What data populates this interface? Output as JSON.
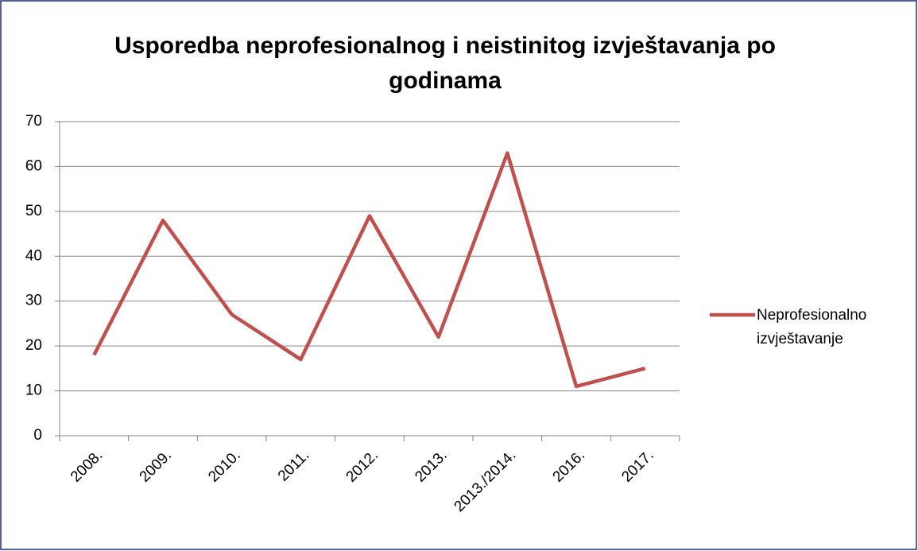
{
  "chart_data": {
    "type": "line",
    "title": "Usporedba neprofesionalnog i neistinitog izvještavanja po godinama",
    "categories": [
      "2008.",
      "2009.",
      "2010.",
      "2011.",
      "2012.",
      "2013.",
      "2013./2014.",
      "2016.",
      "2017."
    ],
    "series": [
      {
        "name": "Neprofesionalno izvještavanje",
        "color": "#c0504d",
        "values": [
          18,
          48,
          27,
          17,
          49,
          22,
          63,
          11,
          15
        ]
      }
    ],
    "ylim": [
      0,
      70
    ],
    "yticks": [
      0,
      10,
      20,
      30,
      40,
      50,
      60,
      70
    ],
    "grid": true,
    "legend": "right"
  }
}
